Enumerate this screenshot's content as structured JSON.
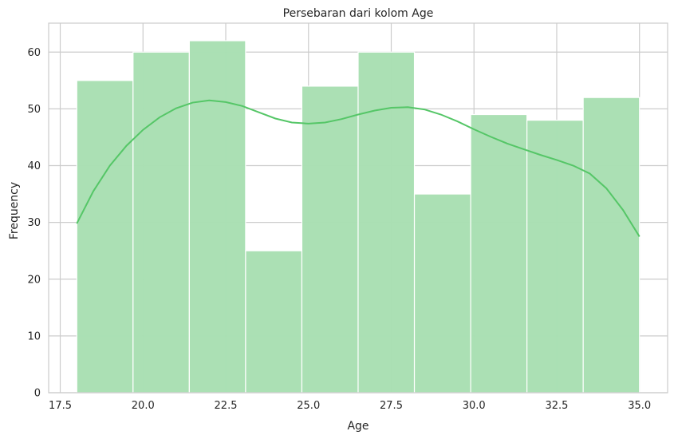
{
  "chart_data": {
    "type": "bar",
    "title": "Persebaran dari kolom Age",
    "xlabel": "Age",
    "ylabel": "Frequency",
    "xlim": [
      17.15,
      35.85
    ],
    "ylim": [
      0,
      65.1
    ],
    "xticks": [
      17.5,
      20.0,
      22.5,
      25.0,
      27.5,
      30.0,
      32.5,
      35.0
    ],
    "xtick_labels": [
      "17.5",
      "20.0",
      "22.5",
      "25.0",
      "27.5",
      "30.0",
      "32.5",
      "35.0"
    ],
    "yticks": [
      0,
      10,
      20,
      30,
      40,
      50,
      60
    ],
    "ytick_labels": [
      "0",
      "10",
      "20",
      "30",
      "40",
      "50",
      "60"
    ],
    "grid": true,
    "bins": [
      {
        "start": 18.0,
        "end": 19.7,
        "count": 55
      },
      {
        "start": 19.7,
        "end": 21.4,
        "count": 60
      },
      {
        "start": 21.4,
        "end": 23.1,
        "count": 62
      },
      {
        "start": 23.1,
        "end": 24.8,
        "count": 25
      },
      {
        "start": 24.8,
        "end": 26.5,
        "count": 54
      },
      {
        "start": 26.5,
        "end": 28.2,
        "count": 60
      },
      {
        "start": 28.2,
        "end": 29.9,
        "count": 35
      },
      {
        "start": 29.9,
        "end": 31.6,
        "count": 49
      },
      {
        "start": 31.6,
        "end": 33.3,
        "count": 48
      },
      {
        "start": 33.3,
        "end": 35.0,
        "count": 52
      }
    ],
    "kde": {
      "x": [
        18.0,
        18.5,
        19.0,
        19.5,
        20.0,
        20.5,
        21.0,
        21.5,
        22.0,
        22.5,
        23.0,
        23.5,
        24.0,
        24.5,
        25.0,
        25.5,
        26.0,
        26.5,
        27.0,
        27.5,
        28.0,
        28.5,
        29.0,
        29.5,
        30.0,
        30.5,
        31.0,
        31.5,
        32.0,
        32.5,
        33.0,
        33.5,
        34.0,
        34.5,
        35.0
      ],
      "y": [
        29.8,
        35.5,
        40.0,
        43.5,
        46.3,
        48.5,
        50.1,
        51.1,
        51.5,
        51.2,
        50.5,
        49.4,
        48.3,
        47.6,
        47.4,
        47.6,
        48.2,
        49.0,
        49.7,
        50.2,
        50.3,
        49.9,
        49.0,
        47.8,
        46.4,
        45.1,
        43.9,
        42.9,
        41.9,
        41.0,
        40.0,
        38.6,
        36.0,
        32.2,
        27.5
      ]
    },
    "colors": {
      "bar_fill": "#a9dfb3",
      "kde_line": "#55c667"
    }
  }
}
